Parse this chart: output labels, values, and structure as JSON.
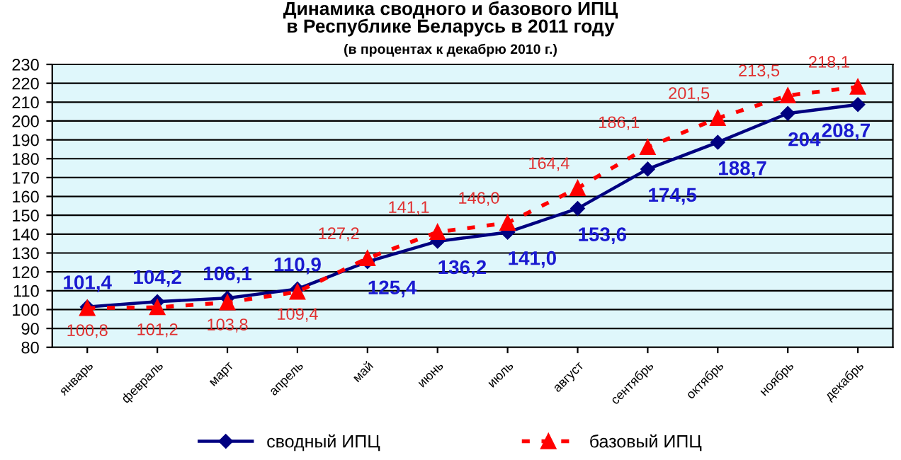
{
  "chart_data": {
    "type": "line",
    "title": "Динамика сводного и базового ИПЦ\nв Республике Беларусь в 2011 году",
    "subtitle": "(в процентах к декабрю 2010 г.)",
    "categories": [
      "январь",
      "февраль",
      "март",
      "апрель",
      "май",
      "июнь",
      "июль",
      "август",
      "сентябрь",
      "октябрь",
      "ноябрь",
      "декабрь"
    ],
    "series": [
      {
        "name": "сводный ИПЦ",
        "color": "#000080",
        "marker": "diamond",
        "line_style": "solid",
        "values": [
          101.4,
          104.2,
          106.1,
          110.9,
          125.4,
          136.2,
          141.0,
          153.6,
          174.5,
          188.7,
          204,
          208.7
        ],
        "value_labels": [
          "101,4",
          "104,2",
          "106,1",
          "110,9",
          "125,4",
          "136,2",
          "141,0",
          "153,6",
          "174,5",
          "188,7",
          "204",
          "208,7"
        ]
      },
      {
        "name": "базовый ИПЦ",
        "color": "#ff0000",
        "marker": "triangle",
        "line_style": "dotted",
        "values": [
          100.8,
          101.2,
          103.8,
          109.4,
          127.2,
          141.1,
          146.0,
          164.4,
          186.1,
          201.5,
          213.5,
          218.1
        ],
        "value_labels": [
          "100,8",
          "101,2",
          "103,8",
          "109,4",
          "127,2",
          "141,1",
          "146,0",
          "164,4",
          "186,1",
          "201,5",
          "213,5",
          "218,1"
        ]
      }
    ],
    "ylim": [
      80,
      230
    ],
    "yticks": [
      80,
      90,
      100,
      110,
      120,
      130,
      140,
      150,
      160,
      170,
      180,
      190,
      200,
      210,
      220,
      230
    ],
    "grid": "y",
    "legend": "bottom"
  }
}
